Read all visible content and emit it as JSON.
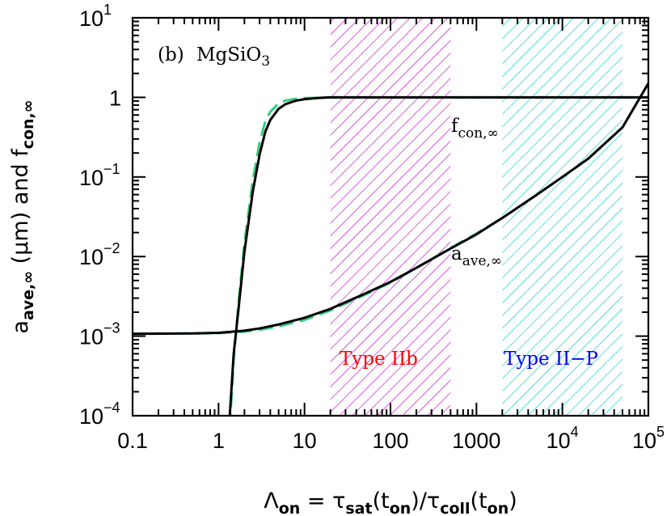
{
  "chart_data": {
    "type": "line",
    "panel_label": "(b)",
    "material": {
      "base": "MgSiO",
      "sub": "3"
    },
    "xscale": "log",
    "yscale": "log",
    "xlim": [
      0.1,
      100000
    ],
    "ylim": [
      0.0001,
      10
    ],
    "x_ticks": [
      {
        "value": 0.1,
        "label": "0.1"
      },
      {
        "value": 1,
        "label": "1"
      },
      {
        "value": 10,
        "label": "10"
      },
      {
        "value": 100,
        "label": "100"
      },
      {
        "value": 1000,
        "label": "1000"
      },
      {
        "value": 10000,
        "label": "10",
        "exp": "4"
      },
      {
        "value": 100000,
        "label": "10",
        "exp": "5"
      }
    ],
    "y_ticks": [
      {
        "value": 0.0001,
        "label": "10",
        "exp": "−4"
      },
      {
        "value": 0.001,
        "label": "10",
        "exp": "−3"
      },
      {
        "value": 0.01,
        "label": "10",
        "exp": "−2"
      },
      {
        "value": 0.1,
        "label": "10",
        "exp": "−1"
      },
      {
        "value": 1,
        "label": "1"
      },
      {
        "value": 10,
        "label": "10",
        "exp": "1"
      }
    ],
    "xlabel": {
      "parts": [
        {
          "t": "Λ"
        },
        {
          "t": "on",
          "sub": true
        },
        {
          "t": " = "
        },
        {
          "t": "τ"
        },
        {
          "t": "sat",
          "sub": true
        },
        {
          "t": "(t"
        },
        {
          "t": "on",
          "sub": true
        },
        {
          "t": ")/"
        },
        {
          "t": "τ"
        },
        {
          "t": "coll",
          "sub": true
        },
        {
          "t": "(t"
        },
        {
          "t": "on",
          "sub": true
        },
        {
          "t": ")"
        }
      ]
    },
    "ylabel": {
      "parts": [
        {
          "t": "a"
        },
        {
          "t": "ave,∞",
          "sub": true
        },
        {
          "t": "  ("
        },
        {
          "t": "μ"
        },
        {
          "t": "m)  and  f"
        },
        {
          "t": "con,∞",
          "sub": true
        }
      ]
    },
    "regions": [
      {
        "name": "Type IIb",
        "x_range": [
          20,
          500
        ],
        "color": "#cc00cc",
        "label_color": "#ff0000"
      },
      {
        "name": "Type II−P",
        "x_range": [
          2000,
          50000
        ],
        "color": "#00cccc",
        "label_color": "#0000ff"
      }
    ],
    "series": [
      {
        "name": "f",
        "name_sub": "con,∞",
        "style": "solid",
        "color": "#000000",
        "points": [
          [
            1.35,
            0.0001
          ],
          [
            1.5,
            0.0006
          ],
          [
            1.7,
            0.0021
          ],
          [
            2.0,
            0.0115
          ],
          [
            2.5,
            0.065
          ],
          [
            3.0,
            0.19
          ],
          [
            3.5,
            0.37
          ],
          [
            4.0,
            0.52
          ],
          [
            5.0,
            0.72
          ],
          [
            6.0,
            0.82
          ],
          [
            7.0,
            0.87
          ],
          [
            8.0,
            0.91
          ],
          [
            10.0,
            0.95
          ],
          [
            15.0,
            0.985
          ],
          [
            20.0,
            1.0
          ],
          [
            100000,
            1.0
          ]
        ]
      },
      {
        "name": "f fit",
        "style": "dashed",
        "color": "#33cc80",
        "points": [
          [
            1.35,
            7e-05
          ],
          [
            1.5,
            0.0005
          ],
          [
            1.7,
            0.0025
          ],
          [
            2.0,
            0.015
          ],
          [
            2.5,
            0.09
          ],
          [
            3.0,
            0.27
          ],
          [
            3.5,
            0.5
          ],
          [
            4.0,
            0.66
          ],
          [
            5.0,
            0.84
          ],
          [
            6.0,
            0.91
          ],
          [
            7.0,
            0.94
          ],
          [
            8.0,
            0.96
          ],
          [
            10.0,
            0.98
          ],
          [
            15.0,
            0.99
          ],
          [
            20.0,
            1.0
          ],
          [
            100000,
            1.0
          ]
        ]
      },
      {
        "name": "a",
        "name_sub": "ave,∞",
        "style": "solid",
        "color": "#000000",
        "points": [
          [
            0.1,
            0.00107
          ],
          [
            0.5,
            0.00108
          ],
          [
            1.0,
            0.0011
          ],
          [
            2.0,
            0.00117
          ],
          [
            3.0,
            0.00125
          ],
          [
            5.0,
            0.0014
          ],
          [
            10.0,
            0.0017
          ],
          [
            20.0,
            0.0022
          ],
          [
            50.0,
            0.0034
          ],
          [
            100.0,
            0.0048
          ],
          [
            200.0,
            0.0072
          ],
          [
            500.0,
            0.0126
          ],
          [
            1000.0,
            0.019
          ],
          [
            2000.0,
            0.0305
          ],
          [
            5000.0,
            0.0595
          ],
          [
            10000.0,
            0.1
          ],
          [
            20000.0,
            0.17
          ],
          [
            50000.0,
            0.42
          ],
          [
            100000.0,
            1.5
          ]
        ]
      },
      {
        "name": "a fit",
        "style": "dashed",
        "color": "#33cc80",
        "points": [
          [
            0.1,
            0.00107
          ],
          [
            0.5,
            0.00108
          ],
          [
            1.0,
            0.00109
          ],
          [
            2.0,
            0.00114
          ],
          [
            3.0,
            0.0012
          ],
          [
            5.0,
            0.00133
          ],
          [
            10.0,
            0.0016
          ],
          [
            20.0,
            0.0021
          ],
          [
            50.0,
            0.0033
          ],
          [
            100.0,
            0.0047
          ],
          [
            200.0,
            0.0072
          ],
          [
            500.0,
            0.0128
          ],
          [
            1000.0,
            0.0195
          ],
          [
            2000.0,
            0.0305
          ],
          [
            5000.0,
            0.0595
          ],
          [
            10000.0,
            0.1
          ],
          [
            20000.0,
            0.17
          ],
          [
            50000.0,
            0.42
          ],
          [
            100000.0,
            1.5
          ]
        ]
      }
    ]
  }
}
